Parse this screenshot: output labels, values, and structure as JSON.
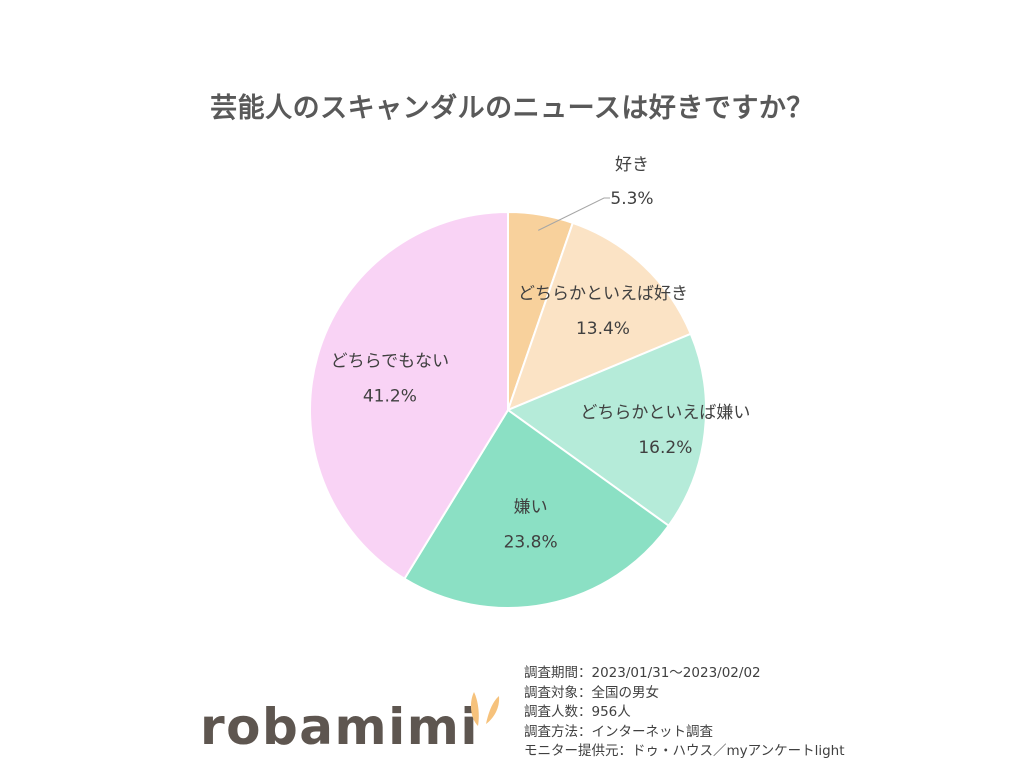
{
  "title": "芸能人のスキャンダルのニュースは好きですか？",
  "chart_data": {
    "type": "pie",
    "title": "芸能人のスキャンダルのニュースは好きですか？",
    "start_angle_deg": 0,
    "direction": "clockwise",
    "slices": [
      {
        "label": "好き",
        "value": 5.3,
        "value_label": "5.3%",
        "color": "#f8d19c"
      },
      {
        "label": "どちらかといえば好き",
        "value": 13.4,
        "value_label": "13.4%",
        "color": "#fbe3c5"
      },
      {
        "label": "どちらかといえば嫌い",
        "value": 16.2,
        "value_label": "16.2%",
        "color": "#b5ebd9"
      },
      {
        "label": "嫌い",
        "value": 23.8,
        "value_label": "23.8%",
        "color": "#8be0c4"
      },
      {
        "label": "どちらでもない",
        "value": 41.2,
        "value_label": "41.2%",
        "color": "#f9d3f5"
      }
    ]
  },
  "notes": [
    "調査期間：2023/01/31～2023/02/02",
    "調査対象：全国の男女",
    "調査人数：956人",
    "調査方法：インターネット調査",
    "モニター提供元：ドゥ・ハウス／myアンケートlight"
  ],
  "logo": {
    "text": "robamimi",
    "ear_color": "#f6c27c",
    "text_color": "#5e5650"
  }
}
